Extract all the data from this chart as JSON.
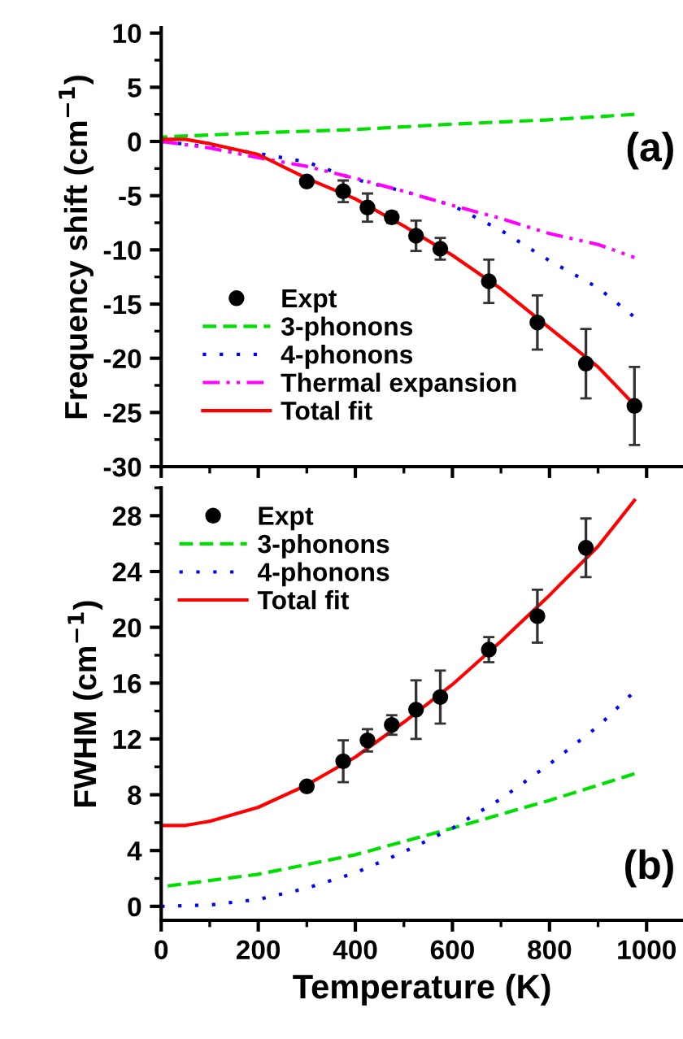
{
  "chart_data": [
    {
      "type": "scatter",
      "ylabel": "Frequency shift (cm$^{−1}$)",
      "xlim": [
        0,
        1075
      ],
      "ylim": [
        -30,
        10.5
      ],
      "xticks": [
        0,
        200,
        400,
        600,
        800,
        1000
      ],
      "yticks": [
        -30,
        -25,
        -20,
        -15,
        -10,
        -5,
        0,
        5,
        10
      ],
      "tick_labels": "y",
      "legend": "bottom left",
      "annotations": [
        "(a)"
      ],
      "series": [
        {
          "name": "Expt",
          "color": "#000000",
          "marker": "circle",
          "x": [
            300,
            375,
            425,
            475,
            525,
            575,
            675,
            775,
            875,
            975
          ],
          "values": [
            -3.7,
            -4.6,
            -6.1,
            -7.0,
            -8.7,
            -9.9,
            -12.9,
            -16.7,
            -20.5,
            -24.4
          ],
          "errors": [
            0.3,
            1.0,
            1.3,
            0.5,
            1.4,
            1.0,
            2.0,
            2.5,
            3.2,
            3.6
          ]
        },
        {
          "name": "3-phonons",
          "type": "line",
          "color": "#00e000",
          "line_style": "dashed",
          "x": [
            0,
            200,
            400,
            600,
            800,
            975
          ],
          "values": [
            0.4,
            0.8,
            1.1,
            1.6,
            2.0,
            2.5
          ]
        },
        {
          "name": "4-phonons",
          "type": "line",
          "color": "#0000ff",
          "line_style": "dotted",
          "x": [
            0,
            100,
            200,
            300,
            400,
            500,
            600,
            700,
            800,
            900,
            975
          ],
          "values": [
            0,
            -0.5,
            -1.1,
            -1.9,
            -3.5,
            -4.6,
            -5.9,
            -8.2,
            -11.0,
            -13.5,
            -16.2
          ]
        },
        {
          "name": "Thermal expansion",
          "type": "line",
          "color": "#ff00ff",
          "line_style": "dashdotdot",
          "x": [
            0,
            100,
            200,
            300,
            400,
            500,
            600,
            700,
            800,
            900,
            975
          ],
          "values": [
            0,
            -0.6,
            -1.5,
            -2.3,
            -3.4,
            -4.6,
            -5.9,
            -7.1,
            -8.5,
            -9.5,
            -10.7
          ]
        },
        {
          "name": "Total fit",
          "type": "line",
          "color": "#ff0000",
          "line_style": "solid",
          "x": [
            0,
            50,
            100,
            200,
            300,
            400,
            500,
            600,
            700,
            800,
            900,
            975
          ],
          "values": [
            0.2,
            0.2,
            -0.2,
            -1.2,
            -3.4,
            -5.3,
            -7.8,
            -10.5,
            -13.6,
            -17.2,
            -20.8,
            -24.3
          ]
        }
      ]
    },
    {
      "type": "scatter",
      "xlabel": "Temperature (K)",
      "ylabel": "FWHM (cm$^{−1}$)",
      "xlim": [
        0,
        1075
      ],
      "ylim": [
        -1,
        30
      ],
      "xticks": [
        0,
        200,
        400,
        600,
        800,
        1000
      ],
      "yticks": [
        0,
        4,
        8,
        12,
        16,
        20,
        24,
        28
      ],
      "legend": "top left",
      "annotations": [
        "(b)"
      ],
      "series": [
        {
          "name": "Expt",
          "color": "#000000",
          "marker": "circle",
          "x": [
            300,
            375,
            425,
            475,
            525,
            575,
            675,
            775,
            875
          ],
          "values": [
            8.6,
            10.4,
            11.9,
            13.0,
            14.1,
            15.0,
            18.4,
            20.8,
            25.7
          ],
          "errors": [
            0.3,
            1.5,
            0.8,
            0.7,
            2.1,
            1.9,
            0.9,
            1.9,
            2.1
          ]
        },
        {
          "name": "3-phonons",
          "type": "line",
          "color": "#00e000",
          "line_style": "dashed",
          "x": [
            0,
            200,
            400,
            600,
            800,
            975
          ],
          "values": [
            1.4,
            2.3,
            3.7,
            5.6,
            7.6,
            9.5
          ]
        },
        {
          "name": "4-phonons",
          "type": "line",
          "color": "#0000ff",
          "line_style": "dotted",
          "x": [
            0,
            100,
            200,
            300,
            400,
            500,
            600,
            700,
            800,
            900,
            975
          ],
          "values": [
            0,
            0.1,
            0.5,
            1.3,
            2.4,
            3.9,
            5.6,
            7.7,
            10.2,
            12.9,
            15.4
          ]
        },
        {
          "name": "Total fit",
          "type": "line",
          "color": "#ff0000",
          "line_style": "solid",
          "x": [
            0,
            50,
            100,
            200,
            300,
            400,
            500,
            600,
            700,
            800,
            900,
            975
          ],
          "values": [
            5.8,
            5.8,
            6.1,
            7.1,
            8.7,
            10.7,
            13.2,
            15.9,
            19.0,
            22.3,
            25.8,
            29.1
          ]
        }
      ]
    }
  ]
}
